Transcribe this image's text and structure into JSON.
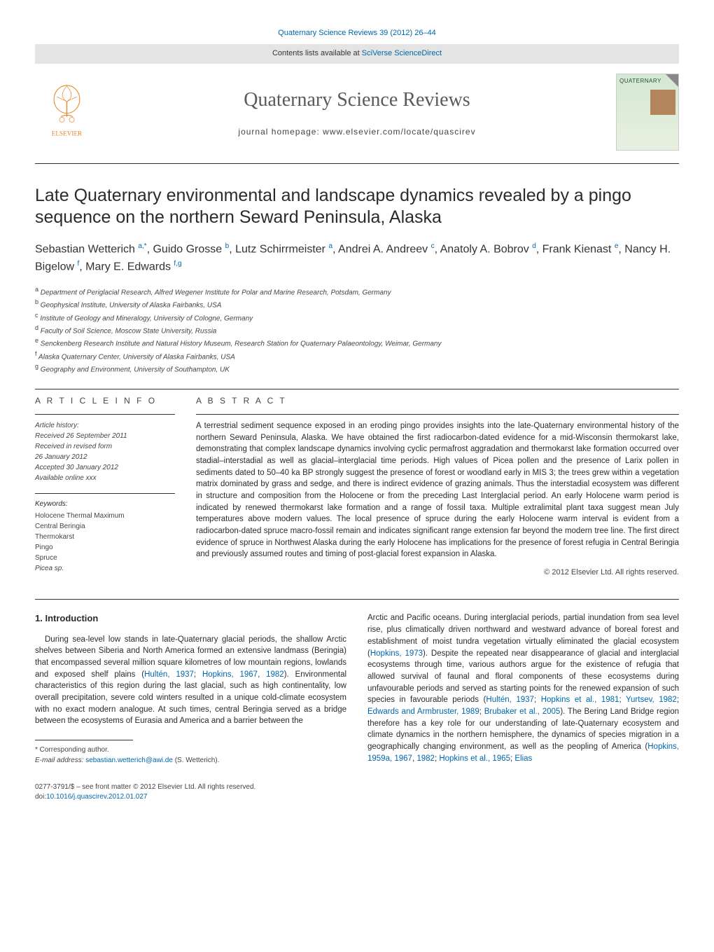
{
  "header": {
    "citation_link": "Quaternary Science Reviews 39 (2012) 26–44",
    "contents_line_prefix": "Contents lists available at ",
    "contents_link": "SciVerse ScienceDirect",
    "journal_title": "Quaternary Science Reviews",
    "homepage_prefix": "journal homepage: ",
    "homepage_url": "www.elsevier.com/locate/quascirev",
    "cover_label": "QUATERNARY"
  },
  "paper": {
    "title": "Late Quaternary environmental and landscape dynamics revealed by a pingo sequence on the northern Seward Peninsula, Alaska",
    "authors_html": "Sebastian Wetterich <sup>a,*</sup>, Guido Grosse <sup>b</sup>, Lutz Schirrmeister <sup>a</sup>, Andrei A. Andreev <sup>c</sup>, Anatoly A. Bobrov <sup>d</sup>, Frank Kienast <sup>e</sup>, Nancy H. Bigelow <sup>f</sup>, Mary E. Edwards <sup>f,g</sup>",
    "affiliations": [
      {
        "sup": "a",
        "text": "Department of Periglacial Research, Alfred Wegener Institute for Polar and Marine Research, Potsdam, Germany"
      },
      {
        "sup": "b",
        "text": "Geophysical Institute, University of Alaska Fairbanks, USA"
      },
      {
        "sup": "c",
        "text": "Institute of Geology and Mineralogy, University of Cologne, Germany"
      },
      {
        "sup": "d",
        "text": "Faculty of Soil Science, Moscow State University, Russia"
      },
      {
        "sup": "e",
        "text": "Senckenberg Research Institute and Natural History Museum, Research Station for Quaternary Palaeontology, Weimar, Germany"
      },
      {
        "sup": "f",
        "text": "Alaska Quaternary Center, University of Alaska Fairbanks, USA"
      },
      {
        "sup": "g",
        "text": "Geography and Environment, University of Southampton, UK"
      }
    ]
  },
  "article_info": {
    "heading": "A R T I C L E   I N F O",
    "history_label": "Article history:",
    "history": [
      "Received 26 September 2011",
      "Received in revised form",
      "26 January 2012",
      "Accepted 30 January 2012",
      "Available online xxx"
    ],
    "keywords_label": "Keywords:",
    "keywords": [
      "Holocene Thermal Maximum",
      "Central Beringia",
      "Thermokarst",
      "Pingo",
      "Spruce",
      "Picea sp."
    ]
  },
  "abstract": {
    "heading": "A B S T R A C T",
    "text": "A terrestrial sediment sequence exposed in an eroding pingo provides insights into the late-Quaternary environmental history of the northern Seward Peninsula, Alaska. We have obtained the first radiocarbon-dated evidence for a mid-Wisconsin thermokarst lake, demonstrating that complex landscape dynamics involving cyclic permafrost aggradation and thermokarst lake formation occurred over stadial–interstadial as well as glacial–interglacial time periods. High values of Picea pollen and the presence of Larix pollen in sediments dated to 50–40 ka BP strongly suggest the presence of forest or woodland early in MIS 3; the trees grew within a vegetation matrix dominated by grass and sedge, and there is indirect evidence of grazing animals. Thus the interstadial ecosystem was different in structure and composition from the Holocene or from the preceding Last Interglacial period. An early Holocene warm period is indicated by renewed thermokarst lake formation and a range of fossil taxa. Multiple extralimital plant taxa suggest mean July temperatures above modern values. The local presence of spruce during the early Holocene warm interval is evident from a radiocarbon-dated spruce macro-fossil remain and indicates significant range extension far beyond the modern tree line. The first direct evidence of spruce in Northwest Alaska during the early Holocene has implications for the presence of forest refugia in Central Beringia and previously assumed routes and timing of post-glacial forest expansion in Alaska.",
    "copyright": "© 2012 Elsevier Ltd. All rights reserved."
  },
  "intro": {
    "heading": "1.  Introduction",
    "col1_p1_prefix": "During sea-level low stands in late-Quaternary glacial periods, the shallow Arctic shelves between Siberia and North America formed an extensive landmass (Beringia) that encompassed several million square kilometres of low mountain regions, lowlands and exposed shelf plains (",
    "col1_r1": "Hultén, 1937",
    "col1_sep1": "; ",
    "col1_r2": "Hopkins, 1967",
    "col1_sep2": ", ",
    "col1_r3": "1982",
    "col1_p1_suffix": "). Environmental characteristics of this region during the last glacial, such as high continentality, low overall precipitation, severe cold winters resulted in a unique cold-climate ecosystem with no exact modern analogue. At such times, central Beringia served as a bridge between the ecosystems of Eurasia and America and a barrier between the",
    "col2_p1_prefix": "Arctic and Pacific oceans. During interglacial periods, partial inundation from sea level rise, plus climatically driven northward and westward advance of boreal forest and establishment of moist tundra vegetation virtually eliminated the glacial ecosystem (",
    "col2_r1": "Hopkins, 1973",
    "col2_p1_mid1": "). Despite the repeated near disappearance of glacial and interglacial ecosystems through time, various authors argue for the existence of refugia that allowed survival of faunal and floral components of these ecosystems during unfavourable periods and served as starting points for the renewed expansion of such species in favourable periods (",
    "col2_r2": "Hultén, 1937",
    "col2_sep1": "; ",
    "col2_r3": "Hopkins et al., 1981",
    "col2_sep2": "; ",
    "col2_r4": "Yurtsev, 1982",
    "col2_sep3": "; ",
    "col2_r5": "Edwards and Armbruster, 1989",
    "col2_sep4": "; ",
    "col2_r6": "Brubaker et al., 2005",
    "col2_p1_mid2": "). The Bering Land Bridge region therefore has a key role for our understanding of late-Quaternary ecosystem and climate dynamics in the northern hemisphere, the dynamics of species migration in a geographically changing environment, as well as the peopling of America (",
    "col2_r7": "Hopkins, 1959a, 1967",
    "col2_sep5": ", ",
    "col2_r8": "1982",
    "col2_sep6": "; ",
    "col2_r9": "Hopkins et al., 1965",
    "col2_sep7": "; ",
    "col2_r10": "Elias"
  },
  "footnote": {
    "corresponding": "* Corresponding author.",
    "email_label": "E-mail address: ",
    "email": "sebastian.wetterich@awi.de",
    "email_suffix": " (S. Wetterich)."
  },
  "footer": {
    "line1": "0277-3791/$ – see front matter © 2012 Elsevier Ltd. All rights reserved.",
    "doi_prefix": "doi:",
    "doi": "10.1016/j.quascirev.2012.01.027"
  },
  "colors": {
    "link": "#0066aa",
    "text": "#2b2b2b",
    "muted": "#444444",
    "header_bg": "#e4e4e4",
    "elsevier_orange": "#e8872b"
  }
}
